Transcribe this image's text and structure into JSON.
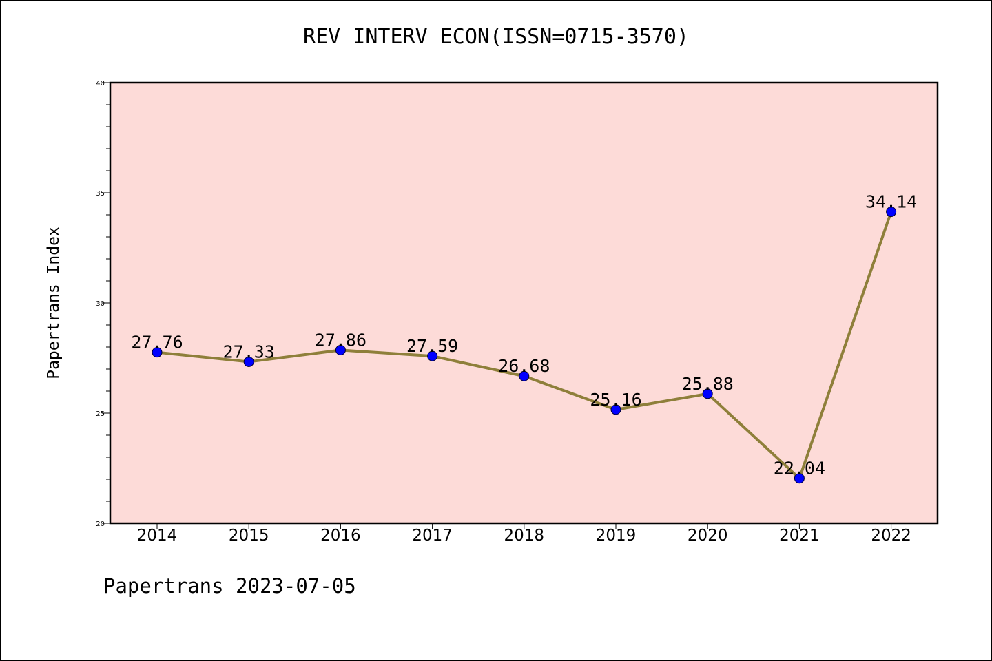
{
  "title": "REV INTERV ECON(ISSN=0715-3570)",
  "footer": "Papertrans 2023-07-05",
  "chart_data": {
    "type": "line",
    "title": "REV INTERV ECON(ISSN=0715-3570)",
    "xlabel": "",
    "ylabel": "Papertrans Index",
    "categories": [
      "2014",
      "2015",
      "2016",
      "2017",
      "2018",
      "2019",
      "2020",
      "2021",
      "2022"
    ],
    "values": [
      27.76,
      27.33,
      27.86,
      27.59,
      26.68,
      25.16,
      25.88,
      22.04,
      34.14
    ],
    "data_labels": [
      "27.76",
      "27.33",
      "27.86",
      "27.59",
      "26.68",
      "25.16",
      "25.88",
      "22.04",
      "34.14"
    ],
    "ylim": [
      20,
      40
    ],
    "yticks": [
      "20",
      "25",
      "30",
      "35",
      "40"
    ],
    "grid": false,
    "legend": "none",
    "colors": {
      "plot_background": "#fddbd8",
      "line": "#8e7f3a",
      "marker": "#0000ff"
    }
  }
}
